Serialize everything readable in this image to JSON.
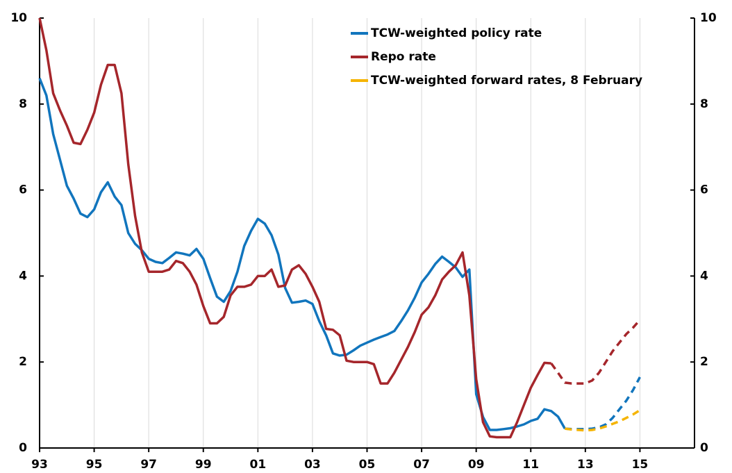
{
  "chart_data": {
    "type": "line",
    "xlim": [
      1993,
      2017
    ],
    "xticks": [
      {
        "value": 1993,
        "label": "93"
      },
      {
        "value": 1995,
        "label": "95"
      },
      {
        "value": 1997,
        "label": "97"
      },
      {
        "value": 1999,
        "label": "99"
      },
      {
        "value": 2001,
        "label": "01"
      },
      {
        "value": 2003,
        "label": "03"
      },
      {
        "value": 2005,
        "label": "05"
      },
      {
        "value": 2007,
        "label": "07"
      },
      {
        "value": 2009,
        "label": "09"
      },
      {
        "value": 2011,
        "label": "11"
      },
      {
        "value": 2013,
        "label": "13"
      },
      {
        "value": 2015,
        "label": "15"
      }
    ],
    "ylim": [
      0,
      10
    ],
    "yticks": [
      0,
      2,
      4,
      6,
      8,
      10
    ],
    "y2lim": [
      0,
      10
    ],
    "y2ticks": [
      0,
      2,
      4,
      6,
      8,
      10
    ],
    "xgrid": true,
    "series": [
      {
        "name": "TCW-weighted policy rate",
        "color": "#1175bd",
        "x": [
          1993.0,
          1993.25,
          1993.5,
          1993.75,
          1994.0,
          1994.25,
          1994.5,
          1994.75,
          1995.0,
          1995.25,
          1995.5,
          1995.75,
          1996.0,
          1996.25,
          1996.5,
          1996.75,
          1997.0,
          1997.25,
          1997.5,
          1997.75,
          1998.0,
          1998.25,
          1998.5,
          1998.75,
          1999.0,
          1999.25,
          1999.5,
          1999.75,
          2000.0,
          2000.25,
          2000.5,
          2000.75,
          2001.0,
          2001.25,
          2001.5,
          2001.75,
          2002.0,
          2002.25,
          2002.5,
          2002.75,
          2003.0,
          2003.25,
          2003.5,
          2003.75,
          2004.0,
          2004.25,
          2004.5,
          2004.75,
          2005.0,
          2005.25,
          2005.5,
          2005.75,
          2006.0,
          2006.25,
          2006.5,
          2006.75,
          2007.0,
          2007.25,
          2007.5,
          2007.75,
          2008.0,
          2008.25,
          2008.5,
          2008.75,
          2009.0,
          2009.25,
          2009.5,
          2009.75,
          2010.0,
          2010.25,
          2010.5,
          2010.75,
          2011.0,
          2011.25,
          2011.5,
          2011.75,
          2012.0,
          2012.25
        ],
        "values": [
          8.6,
          8.2,
          7.3,
          6.7,
          6.1,
          5.8,
          5.45,
          5.37,
          5.55,
          5.95,
          6.18,
          5.85,
          5.65,
          5.0,
          4.75,
          4.6,
          4.4,
          4.33,
          4.3,
          4.42,
          4.55,
          4.52,
          4.48,
          4.63,
          4.4,
          3.95,
          3.52,
          3.4,
          3.65,
          4.1,
          4.7,
          5.05,
          5.33,
          5.22,
          4.95,
          4.5,
          3.72,
          3.38,
          3.4,
          3.43,
          3.35,
          2.95,
          2.62,
          2.2,
          2.15,
          2.17,
          2.27,
          2.38,
          2.45,
          2.52,
          2.58,
          2.64,
          2.72,
          2.95,
          3.2,
          3.5,
          3.85,
          4.05,
          4.28,
          4.45,
          4.33,
          4.2,
          3.98,
          4.15,
          1.25,
          0.72,
          0.42,
          0.42,
          0.44,
          0.46,
          0.5,
          0.55,
          0.63,
          0.68,
          0.9,
          0.86,
          0.73,
          0.45
        ],
        "forecast_x": [
          2012.25,
          2012.5,
          2012.75,
          2013.0,
          2013.25,
          2013.5,
          2013.75,
          2014.0,
          2014.25,
          2014.5,
          2014.75,
          2015.0
        ],
        "forecast_values": [
          0.45,
          0.44,
          0.44,
          0.44,
          0.45,
          0.48,
          0.55,
          0.7,
          0.9,
          1.1,
          1.35,
          1.65
        ]
      },
      {
        "name": "Repo rate",
        "color": "#a5262b",
        "x": [
          1993.0,
          1993.25,
          1993.5,
          1993.75,
          1994.0,
          1994.25,
          1994.5,
          1994.75,
          1995.0,
          1995.25,
          1995.5,
          1995.75,
          1996.0,
          1996.25,
          1996.5,
          1996.75,
          1997.0,
          1997.25,
          1997.5,
          1997.75,
          1998.0,
          1998.25,
          1998.5,
          1998.75,
          1999.0,
          1999.25,
          1999.5,
          1999.75,
          2000.0,
          2000.25,
          2000.5,
          2000.75,
          2001.0,
          2001.25,
          2001.5,
          2001.75,
          2002.0,
          2002.25,
          2002.5,
          2002.75,
          2003.0,
          2003.25,
          2003.5,
          2003.75,
          2004.0,
          2004.25,
          2004.5,
          2004.75,
          2005.0,
          2005.25,
          2005.5,
          2005.75,
          2006.0,
          2006.25,
          2006.5,
          2006.75,
          2007.0,
          2007.25,
          2007.5,
          2007.75,
          2008.0,
          2008.25,
          2008.5,
          2008.75,
          2009.0,
          2009.25,
          2009.5,
          2009.75,
          2010.0,
          2010.25,
          2010.5,
          2010.75,
          2011.0,
          2011.25,
          2011.5,
          2011.75
        ],
        "values": [
          10.0,
          9.25,
          8.25,
          7.85,
          7.5,
          7.1,
          7.07,
          7.4,
          7.8,
          8.45,
          8.91,
          8.91,
          8.25,
          6.6,
          5.4,
          4.55,
          4.1,
          4.1,
          4.1,
          4.15,
          4.35,
          4.3,
          4.1,
          3.8,
          3.3,
          2.9,
          2.9,
          3.05,
          3.55,
          3.75,
          3.75,
          3.8,
          4.0,
          4.0,
          4.15,
          3.75,
          3.78,
          4.15,
          4.25,
          4.05,
          3.75,
          3.4,
          2.77,
          2.75,
          2.62,
          2.03,
          2.0,
          2.0,
          2.0,
          1.95,
          1.5,
          1.5,
          1.75,
          2.05,
          2.35,
          2.7,
          3.1,
          3.27,
          3.55,
          3.92,
          4.1,
          4.25,
          4.55,
          3.55,
          1.6,
          0.6,
          0.27,
          0.25,
          0.25,
          0.25,
          0.6,
          1.0,
          1.4,
          1.7,
          1.98,
          1.97
        ],
        "forecast_x": [
          2011.75,
          2012.0,
          2012.25,
          2012.5,
          2012.75,
          2013.0,
          2013.25,
          2013.5,
          2013.75,
          2014.0,
          2014.25,
          2014.5,
          2014.75,
          2015.0
        ],
        "forecast_values": [
          1.97,
          1.75,
          1.52,
          1.5,
          1.5,
          1.5,
          1.57,
          1.75,
          2.0,
          2.25,
          2.45,
          2.65,
          2.8,
          2.98
        ]
      },
      {
        "name": "TCW-weighted forward rates, 8 February",
        "color": "#f5b400",
        "dashed": true,
        "x": [
          2012.25,
          2012.5,
          2012.75,
          2013.0,
          2013.25,
          2013.5,
          2013.75,
          2014.0,
          2014.25,
          2014.5,
          2014.75,
          2015.0
        ],
        "values": [
          0.45,
          0.43,
          0.42,
          0.41,
          0.42,
          0.45,
          0.5,
          0.56,
          0.62,
          0.7,
          0.78,
          0.88
        ]
      }
    ]
  }
}
